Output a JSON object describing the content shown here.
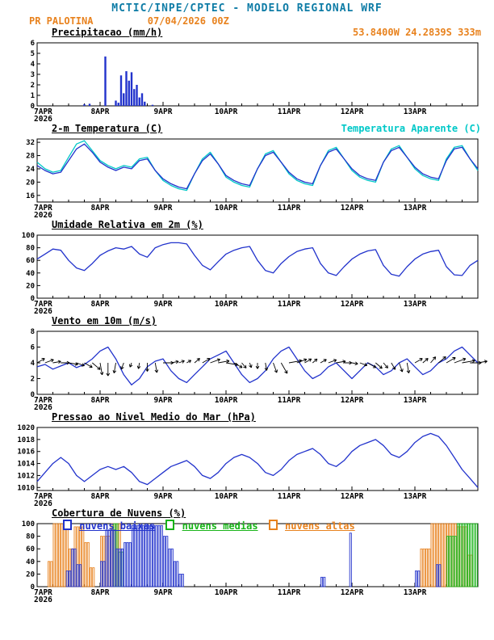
{
  "header": {
    "title": "MCTIC/INPE/CPTEC - MODELO REGIONAL WRF",
    "station": "PR PALOTINA",
    "run": "07/04/2026 00Z",
    "location": "53.8400W 24.2839S 333m"
  },
  "colors": {
    "blue": "#2233cc",
    "cyan": "#00c8c8",
    "green": "#18b418",
    "orange": "#e8821e",
    "header_teal": "#0e7ca6",
    "black": "#000000"
  },
  "x_axis": {
    "hours_total": 168,
    "year": "2026",
    "day_labels": [
      {
        "h": 0,
        "label": "7APR"
      },
      {
        "h": 24,
        "label": "8APR"
      },
      {
        "h": 48,
        "label": "9APR"
      },
      {
        "h": 72,
        "label": "10APR"
      },
      {
        "h": 96,
        "label": "11APR"
      },
      {
        "h": 120,
        "label": "12APR"
      },
      {
        "h": 144,
        "label": "13APR"
      }
    ]
  },
  "chart_data": [
    {
      "type": "bar",
      "title": "Precipitacao (mm/h)",
      "ylabel": "mm/h",
      "ylim": [
        0,
        6
      ],
      "yticks": [
        0,
        1,
        2,
        3,
        4,
        5,
        6
      ],
      "x_unit": "hours since 07APR2026 00Z",
      "bars": [
        {
          "h": 18,
          "v": 0.15
        },
        {
          "h": 20,
          "v": 0.2
        },
        {
          "h": 26,
          "v": 4.7
        },
        {
          "h": 30,
          "v": 0.5
        },
        {
          "h": 31,
          "v": 0.3
        },
        {
          "h": 32,
          "v": 2.9
        },
        {
          "h": 33,
          "v": 1.2
        },
        {
          "h": 34,
          "v": 3.3
        },
        {
          "h": 35,
          "v": 2.4
        },
        {
          "h": 36,
          "v": 3.2
        },
        {
          "h": 37,
          "v": 1.6
        },
        {
          "h": 38,
          "v": 2.0
        },
        {
          "h": 39,
          "v": 0.8
        },
        {
          "h": 40,
          "v": 1.2
        },
        {
          "h": 41,
          "v": 0.4
        },
        {
          "h": 44,
          "v": 0.1
        }
      ]
    },
    {
      "type": "line",
      "title": "2-m Temperatura (C)",
      "ylim": [
        14,
        33
      ],
      "yticks": [
        16,
        20,
        24,
        28,
        32
      ],
      "step_h": 3,
      "series": [
        {
          "name": "2-m Temperatura (C)",
          "color_key": "blue",
          "values": [
            25,
            23.5,
            22.5,
            23,
            26.5,
            30,
            31.5,
            29,
            26,
            24.5,
            23.5,
            24.5,
            24,
            26.5,
            27,
            23.5,
            21,
            19.5,
            18.5,
            18,
            22.5,
            26.5,
            28.5,
            25.5,
            22,
            20.5,
            19.5,
            19,
            24,
            28,
            29,
            26,
            23,
            21,
            20,
            19.5,
            25,
            29,
            30,
            27,
            24,
            22,
            21,
            20.5,
            26,
            29.5,
            30.5,
            27.5,
            24.5,
            22.5,
            21.5,
            21,
            26.5,
            30,
            30.5,
            27,
            24
          ]
        },
        {
          "name": "Temperatura Aparente (C)",
          "color_key": "cyan",
          "values": [
            26,
            24,
            23,
            23.5,
            27.5,
            31.5,
            32.5,
            29.5,
            26.5,
            25,
            24,
            25,
            24.5,
            27,
            27.5,
            23.5,
            20.5,
            19,
            18,
            17.5,
            22.5,
            27,
            29,
            25.5,
            21.5,
            20,
            19,
            18.5,
            24,
            28.5,
            29.5,
            26,
            22.5,
            20.5,
            19.5,
            19,
            25,
            29.5,
            30.5,
            27,
            23.5,
            21.5,
            20.5,
            20,
            26,
            30,
            31,
            27.5,
            24,
            22,
            21,
            20.5,
            27,
            30.5,
            31,
            27,
            23.5
          ]
        }
      ]
    },
    {
      "type": "line",
      "title": "Umidade Relativa em 2m (%)",
      "ylim": [
        0,
        100
      ],
      "yticks": [
        0,
        20,
        40,
        60,
        80,
        100
      ],
      "step_h": 3,
      "series": [
        {
          "name": "Umidade Relativa em 2m (%)",
          "color_key": "blue",
          "values": [
            62,
            70,
            78,
            76,
            60,
            48,
            44,
            55,
            68,
            75,
            80,
            78,
            82,
            70,
            65,
            80,
            85,
            88,
            88,
            86,
            68,
            52,
            45,
            58,
            70,
            76,
            80,
            82,
            60,
            44,
            40,
            55,
            66,
            74,
            78,
            80,
            55,
            40,
            36,
            50,
            62,
            70,
            75,
            77,
            52,
            38,
            35,
            50,
            62,
            70,
            74,
            76,
            50,
            37,
            36,
            52,
            60
          ]
        }
      ]
    },
    {
      "type": "line+arrows",
      "title": "Vento em 10m (m/s)",
      "ylim": [
        0,
        8
      ],
      "yticks": [
        0,
        2,
        4,
        6,
        8
      ],
      "step_h": 3,
      "series": [
        {
          "name": "Vento em 10m (m/s)",
          "color_key": "blue",
          "values": [
            3.5,
            3.8,
            3.2,
            3.6,
            4,
            3.4,
            3.8,
            4.5,
            5.5,
            6,
            4.5,
            2.5,
            1.2,
            2,
            3.5,
            4.2,
            4.5,
            3,
            2,
            1.5,
            2.5,
            3.5,
            4.5,
            5,
            5.5,
            4,
            2.5,
            1.5,
            2,
            3,
            4.5,
            5.5,
            6,
            4.5,
            3,
            2,
            2.5,
            3.5,
            4,
            3,
            2,
            3,
            4,
            3.5,
            2.5,
            3,
            4,
            4.5,
            3.5,
            2.5,
            3,
            4,
            4.5,
            5.5,
            6,
            5,
            4
          ]
        }
      ],
      "arrows": {
        "anchor_value": 4,
        "step_h": 3,
        "dir_deg": [
          60,
          70,
          80,
          90,
          100,
          110,
          120,
          130,
          170,
          180,
          190,
          200,
          200,
          190,
          180,
          170,
          90,
          80,
          70,
          60,
          50,
          60,
          70,
          80,
          100,
          120,
          140,
          160,
          180,
          170,
          160,
          150,
          80,
          70,
          60,
          50,
          60,
          70,
          80,
          90,
          100,
          110,
          120,
          130,
          140,
          150,
          160,
          170,
          60,
          50,
          40,
          50,
          60,
          70,
          80,
          90,
          80
        ]
      }
    },
    {
      "type": "line",
      "title": "Pressao ao Nivel Medio do Mar (hPa)",
      "ylim": [
        1009.5,
        1020
      ],
      "yticks": [
        1010,
        1012,
        1014,
        1016,
        1018,
        1020
      ],
      "step_h": 3,
      "series": [
        {
          "name": "Pressao ao Nivel Medio do Mar (hPa)",
          "color_key": "blue",
          "values": [
            1011,
            1012.5,
            1014,
            1015,
            1014,
            1012,
            1011,
            1012,
            1013,
            1013.5,
            1013,
            1013.5,
            1012.5,
            1011,
            1010.5,
            1011.5,
            1012.5,
            1013.5,
            1014,
            1014.5,
            1013.5,
            1012,
            1011.5,
            1012.5,
            1014,
            1015,
            1015.5,
            1015,
            1014,
            1012.5,
            1012,
            1013,
            1014.5,
            1015.5,
            1016,
            1016.5,
            1015.5,
            1014,
            1013.5,
            1014.5,
            1016,
            1017,
            1017.5,
            1018,
            1017,
            1015.5,
            1015,
            1016,
            1017.5,
            1018.5,
            1019,
            1018.5,
            1017,
            1015,
            1013,
            1011.5,
            1010
          ]
        }
      ]
    },
    {
      "type": "bar-multi",
      "title": "Cobertura de Nuvens (%)",
      "ylim": [
        0,
        100
      ],
      "yticks": [
        0,
        20,
        40,
        60,
        80,
        100
      ],
      "legend": [
        {
          "label": "nuvens baixas",
          "color_key": "blue"
        },
        {
          "label": "nuvens medias",
          "color_key": "green"
        },
        {
          "label": "nuvens altas",
          "color_key": "orange"
        }
      ],
      "series": [
        {
          "name": "nuvens altas",
          "color_key": "orange",
          "segments": [
            [
              4,
              6,
              40
            ],
            [
              6,
              12,
              100
            ],
            [
              12,
              14,
              60
            ],
            [
              14,
              18,
              95
            ],
            [
              18,
              20,
              70
            ],
            [
              20,
              22,
              30
            ],
            [
              24,
              28,
              80
            ],
            [
              28,
              32,
              100
            ],
            [
              146,
              150,
              60
            ],
            [
              150,
              160,
              100
            ],
            [
              160,
              164,
              95
            ],
            [
              164,
              166,
              50
            ]
          ]
        },
        {
          "name": "nuvens medias",
          "color_key": "green",
          "segments": [
            [
              29,
              31,
              100
            ],
            [
              31,
              33,
              55
            ],
            [
              156,
              160,
              80
            ],
            [
              160,
              168,
              100
            ]
          ]
        },
        {
          "name": "nuvens baixas",
          "color_key": "blue",
          "segments": [
            [
              11,
              13,
              25
            ],
            [
              13,
              15,
              60
            ],
            [
              15,
              17,
              35
            ],
            [
              24,
              26,
              40
            ],
            [
              26,
              30,
              90
            ],
            [
              30,
              33,
              60
            ],
            [
              33,
              36,
              70
            ],
            [
              36,
              48,
              97
            ],
            [
              48,
              50,
              80
            ],
            [
              50,
              52,
              60
            ],
            [
              52,
              54,
              40
            ],
            [
              54,
              56,
              20
            ],
            [
              108,
              110,
              15
            ],
            [
              119,
              120,
              85
            ],
            [
              144,
              146,
              25
            ],
            [
              152,
              154,
              35
            ]
          ]
        }
      ]
    }
  ]
}
